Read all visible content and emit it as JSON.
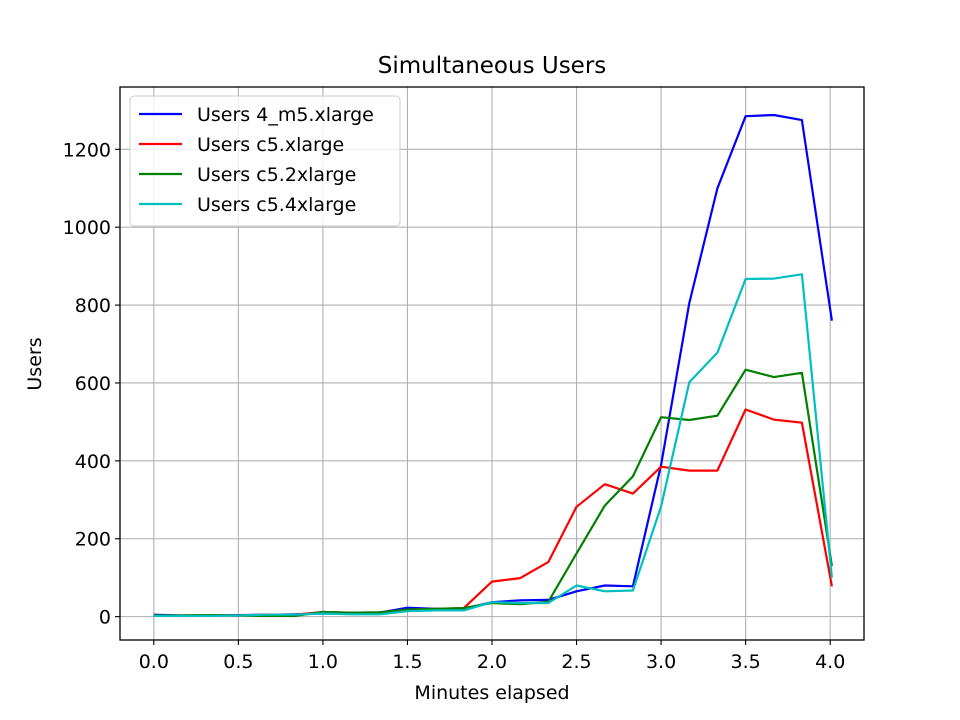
{
  "chart_data": {
    "type": "line",
    "title": "Simultaneous Users",
    "xlabel": "Minutes elapsed",
    "ylabel": "Users",
    "xlim": [
      -0.2,
      4.2
    ],
    "ylim": [
      -60,
      1360
    ],
    "xticks": [
      0.0,
      0.5,
      1.0,
      1.5,
      2.0,
      2.5,
      3.0,
      3.5,
      4.0
    ],
    "xtick_labels": [
      "0.0",
      "0.5",
      "1.0",
      "1.5",
      "2.0",
      "2.5",
      "3.0",
      "3.5",
      "4.0"
    ],
    "yticks": [
      0,
      200,
      400,
      600,
      800,
      1000,
      1200
    ],
    "ytick_labels": [
      "0",
      "200",
      "400",
      "600",
      "800",
      "1000",
      "1200"
    ],
    "grid": true,
    "legend_position": "top-left",
    "x": [
      0.0,
      0.167,
      0.333,
      0.5,
      0.667,
      0.833,
      1.0,
      1.167,
      1.333,
      1.5,
      1.667,
      1.833,
      2.0,
      2.167,
      2.333,
      2.5,
      2.667,
      2.833,
      3.0,
      3.167,
      3.333,
      3.5,
      3.667,
      3.833,
      4.01
    ],
    "series": [
      {
        "name": "Users 4_m5.xlarge",
        "color": "#0000ff",
        "values": [
          5,
          3,
          3,
          4,
          5,
          6,
          8,
          8,
          10,
          23,
          20,
          20,
          37,
          42,
          43,
          65,
          80,
          78,
          390,
          805,
          1100,
          1285,
          1288,
          1275,
          760
        ]
      },
      {
        "name": "Users c5.xlarge",
        "color": "#ff0000",
        "values": [
          3,
          3,
          4,
          3,
          5,
          5,
          12,
          10,
          11,
          18,
          20,
          22,
          90,
          99,
          140,
          282,
          340,
          316,
          385,
          375,
          375,
          532,
          506,
          498,
          78
        ]
      },
      {
        "name": "Users c5.2xlarge",
        "color": "#008000",
        "values": [
          3,
          3,
          4,
          3,
          2,
          2,
          12,
          10,
          11,
          18,
          20,
          22,
          35,
          32,
          38,
          162,
          285,
          360,
          512,
          505,
          516,
          634,
          615,
          626,
          130
        ]
      },
      {
        "name": "Users c5.4xlarge",
        "color": "#00bfbf",
        "values": [
          2,
          2,
          2,
          3,
          5,
          5,
          8,
          6,
          6,
          14,
          16,
          16,
          37,
          35,
          35,
          80,
          65,
          67,
          283,
          602,
          678,
          867,
          868,
          879,
          100
        ]
      }
    ]
  }
}
